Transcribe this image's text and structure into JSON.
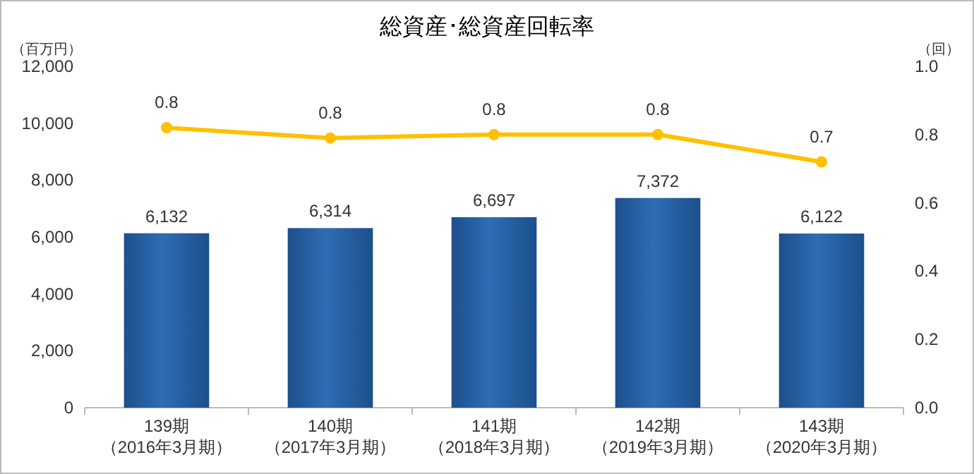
{
  "chart_data": {
    "type": "bar",
    "title": "総資産･総資産回転率",
    "ylabel": "（百万円）",
    "y2label": "（回）",
    "categories": [
      "139期（2016年3月期）",
      "140期（2017年3月期）",
      "141期（2018年3月期）",
      "142期（2019年3月期）",
      "143期（2020年3月期）"
    ],
    "series": [
      {
        "color": "#2e6db4",
        "values": [
          6132,
          6314,
          6697,
          7372,
          6122
        ],
        "value_labels": [
          "6,132",
          "6,314",
          "6,697",
          "7,372",
          "6,122"
        ]
      },
      {
        "type": "line",
        "axis": "y2",
        "color": "#ffc000",
        "marker": "circle",
        "values": [
          0.82,
          0.79,
          0.8,
          0.8,
          0.72
        ],
        "value_labels": [
          "0.8",
          "0.8",
          "0.8",
          "0.8",
          "0.7"
        ]
      }
    ],
    "ylim": [
      0,
      12000
    ],
    "yticks": [
      0,
      {
        "value": 2000,
        "label": "2,000"
      },
      {
        "value": 4000,
        "label": "4,000"
      },
      {
        "value": 6000,
        "label": "6,000"
      },
      {
        "value": 8000,
        "label": "8,000"
      },
      {
        "value": 10000,
        "label": "10,000"
      },
      {
        "value": 12000,
        "label": "12,000"
      }
    ],
    "y2lim": [
      0,
      1
    ],
    "y2ticks": [
      {
        "value": 0,
        "label": "0.0"
      },
      {
        "value": 0.2,
        "label": "0.2"
      },
      {
        "value": 0.4,
        "label": "0.4"
      },
      {
        "value": 0.6,
        "label": "0.6"
      },
      {
        "value": 0.8,
        "label": "0.8"
      },
      {
        "value": 1,
        "label": "1.0"
      }
    ]
  }
}
